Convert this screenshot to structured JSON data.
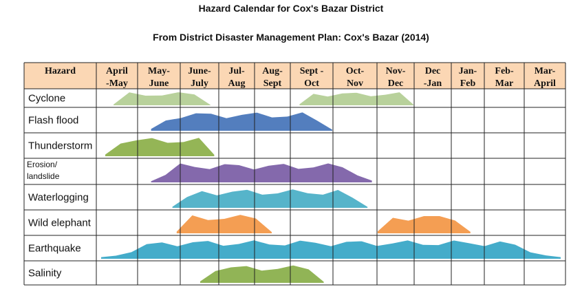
{
  "title": "Hazard Calendar for Cox's Bazar District",
  "subtitle": "From District Disaster Management Plan: Cox's Bazar (2014)",
  "chart_data": {
    "type": "table",
    "header_first_col": "Hazard",
    "months": [
      [
        "April",
        "-May"
      ],
      [
        "May-",
        "June"
      ],
      [
        "June-",
        "July"
      ],
      [
        "Jul-",
        "Aug"
      ],
      [
        "Aug-",
        "Sept"
      ],
      [
        "Sept -",
        "Oct"
      ],
      [
        "Oct-",
        "Nov"
      ],
      [
        "Nov-",
        "Dec"
      ],
      [
        "Dec",
        "-Jan"
      ],
      [
        "Jan-",
        "Feb"
      ],
      [
        "Feb-",
        "Mar"
      ],
      [
        "Mar-",
        "April"
      ]
    ],
    "hazards": [
      {
        "name": [
          "Cyclone"
        ],
        "color": "#b5cf96",
        "periods": [
          [
            0.4,
            2.8
          ],
          [
            5.2,
            8.0
          ]
        ]
      },
      {
        "name": [
          "Flash flood"
        ],
        "color": "#4a78bb",
        "periods": [
          [
            1.3,
            6.0
          ]
        ]
      },
      {
        "name": [
          "Thunderstorm"
        ],
        "color": "#8fb24e",
        "periods": [
          [
            0.2,
            2.9
          ]
        ]
      },
      {
        "name": [
          "Erosion/",
          "landslide"
        ],
        "color": "#7e62a8",
        "periods": [
          [
            1.3,
            6.9
          ]
        ]
      },
      {
        "name": [
          "Waterlogging"
        ],
        "color": "#4db0c8",
        "periods": [
          [
            1.8,
            6.8
          ]
        ]
      },
      {
        "name": [
          "Wild elephant"
        ],
        "color": "#f4994a",
        "periods": [
          [
            1.9,
            4.5
          ],
          [
            7.0,
            9.6
          ]
        ]
      },
      {
        "name": [
          "Earthquake"
        ],
        "color": "#3ba8c8",
        "periods": [
          [
            0.1,
            11.9
          ]
        ]
      },
      {
        "name": [
          "Salinity"
        ],
        "color": "#8cb14e",
        "periods": [
          [
            2.5,
            5.8
          ]
        ]
      }
    ],
    "header_bg": "#fbd7b4",
    "grid": true
  }
}
